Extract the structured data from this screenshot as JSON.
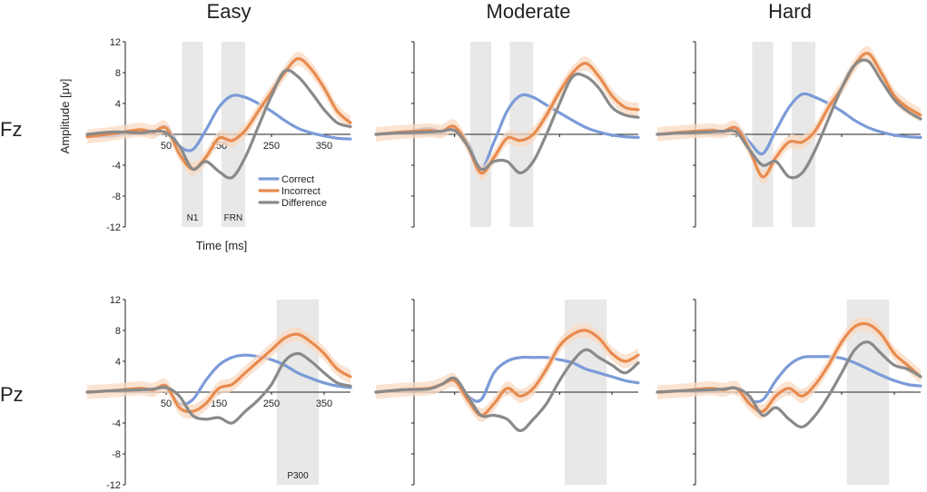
{
  "columns": [
    "Easy",
    "Moderate",
    "Hard"
  ],
  "rows": [
    "Fz",
    "Pz"
  ],
  "colors": {
    "correct": "#7b9bd8",
    "incorrect": "#e88b4f",
    "difference": "#8a8a8a",
    "band": "#f9d9c2",
    "window": "#e8e8e8"
  },
  "axis": {
    "ylabel": "Amplitude [μv]",
    "xlabel": "Time [ms]",
    "yticks": [
      "12",
      "8",
      "4",
      "-4",
      "-8",
      "-12"
    ],
    "xticks": [
      "50",
      "150",
      "250",
      "350"
    ]
  },
  "legend": [
    "Correct",
    "Incorrect",
    "Difference"
  ],
  "windows_labels": {
    "n1": "N1",
    "frn": "FRN",
    "p300": "P300"
  },
  "chart_data": [
    {
      "type": "line",
      "row": "Fz",
      "condition": "Easy",
      "xlim": [
        -100,
        400
      ],
      "ylim": [
        -12,
        12
      ],
      "windows": [
        {
          "name": "N1",
          "range": [
            80,
            120
          ]
        },
        {
          "name": "FRN",
          "range": [
            155,
            200
          ]
        }
      ],
      "x": [
        -100,
        -50,
        0,
        25,
        50,
        75,
        100,
        125,
        150,
        175,
        200,
        225,
        250,
        275,
        300,
        325,
        350,
        375,
        400
      ],
      "series": [
        {
          "name": "Correct",
          "values": [
            -0.3,
            -0.2,
            0.5,
            0.2,
            1.0,
            -1.5,
            -2.0,
            0.5,
            3.5,
            5.0,
            4.8,
            4.0,
            3.0,
            1.8,
            0.8,
            0.2,
            -0.2,
            -0.5,
            -0.6
          ]
        },
        {
          "name": "Incorrect",
          "values": [
            -0.3,
            0.1,
            0.6,
            0.3,
            0.8,
            -2.5,
            -4.5,
            -3.0,
            -0.5,
            -0.8,
            0.5,
            3.0,
            5.5,
            8.0,
            9.8,
            8.5,
            6.0,
            3.0,
            1.5
          ]
        },
        {
          "name": "Difference",
          "values": [
            0.0,
            0.3,
            0.2,
            0.4,
            0.2,
            -1.5,
            -4.5,
            -3.5,
            -4.8,
            -5.6,
            -3.0,
            1.0,
            5.0,
            8.2,
            7.5,
            5.5,
            3.2,
            1.5,
            1.0
          ]
        }
      ]
    },
    {
      "type": "line",
      "row": "Fz",
      "condition": "Moderate",
      "xlim": [
        -100,
        400
      ],
      "ylim": [
        -12,
        12
      ],
      "windows": [
        {
          "name": "N1",
          "range": [
            80,
            120
          ]
        },
        {
          "name": "FRN",
          "range": [
            155,
            200
          ]
        }
      ],
      "x": [
        -100,
        -50,
        0,
        25,
        50,
        75,
        100,
        125,
        150,
        175,
        200,
        225,
        250,
        275,
        300,
        325,
        350,
        375,
        400
      ],
      "series": [
        {
          "name": "Correct",
          "values": [
            0.0,
            0.2,
            0.8,
            0.3,
            0.8,
            -1.0,
            -4.5,
            -1.0,
            3.0,
            5.0,
            4.8,
            3.8,
            2.8,
            1.8,
            0.9,
            0.3,
            -0.1,
            -0.3,
            -0.4
          ]
        },
        {
          "name": "Incorrect",
          "values": [
            0.0,
            0.3,
            0.5,
            0.4,
            1.0,
            -1.5,
            -5.0,
            -3.0,
            -0.5,
            -0.8,
            0.0,
            2.5,
            5.5,
            8.0,
            9.2,
            7.5,
            5.0,
            3.5,
            3.2
          ]
        },
        {
          "name": "Difference",
          "values": [
            0.0,
            0.2,
            0.3,
            0.4,
            0.5,
            -1.5,
            -4.5,
            -3.5,
            -3.5,
            -5.0,
            -3.5,
            0.0,
            4.0,
            7.5,
            7.5,
            6.0,
            3.5,
            2.5,
            2.2
          ]
        }
      ]
    },
    {
      "type": "line",
      "row": "Fz",
      "condition": "Hard",
      "xlim": [
        -100,
        400
      ],
      "ylim": [
        -12,
        12
      ],
      "windows": [
        {
          "name": "N1",
          "range": [
            80,
            120
          ]
        },
        {
          "name": "FRN",
          "range": [
            155,
            200
          ]
        }
      ],
      "x": [
        -100,
        -50,
        0,
        25,
        50,
        75,
        100,
        125,
        150,
        175,
        200,
        225,
        250,
        275,
        300,
        325,
        350,
        375,
        400
      ],
      "series": [
        {
          "name": "Correct",
          "values": [
            0.0,
            0.2,
            0.6,
            0.3,
            0.9,
            -1.0,
            -2.5,
            0.5,
            3.5,
            5.2,
            4.8,
            4.0,
            3.0,
            1.8,
            0.9,
            0.3,
            -0.1,
            -0.3,
            -0.4
          ]
        },
        {
          "name": "Incorrect",
          "values": [
            0.0,
            0.3,
            0.5,
            0.4,
            0.8,
            -2.0,
            -5.5,
            -3.0,
            -1.0,
            -1.0,
            0.5,
            3.5,
            6.0,
            9.0,
            10.5,
            8.0,
            5.0,
            3.5,
            2.5
          ]
        },
        {
          "name": "Difference",
          "values": [
            0.0,
            0.2,
            0.3,
            0.4,
            0.3,
            -2.0,
            -4.0,
            -3.5,
            -5.5,
            -5.0,
            -2.0,
            2.0,
            6.0,
            9.0,
            9.5,
            7.0,
            4.5,
            3.0,
            2.0
          ]
        }
      ]
    },
    {
      "type": "line",
      "row": "Pz",
      "condition": "Easy",
      "xlim": [
        -100,
        400
      ],
      "ylim": [
        -12,
        12
      ],
      "windows": [
        {
          "name": "P300",
          "range": [
            260,
            340
          ]
        }
      ],
      "x": [
        -100,
        -50,
        0,
        25,
        50,
        75,
        100,
        125,
        150,
        175,
        200,
        225,
        250,
        275,
        300,
        325,
        350,
        375,
        400
      ],
      "series": [
        {
          "name": "Correct",
          "values": [
            0.0,
            0.2,
            0.5,
            0.3,
            0.5,
            -1.5,
            -1.0,
            1.5,
            3.5,
            4.5,
            4.8,
            4.6,
            4.2,
            3.5,
            2.5,
            1.8,
            1.2,
            0.8,
            0.6
          ]
        },
        {
          "name": "Incorrect",
          "values": [
            0.0,
            0.2,
            0.5,
            0.3,
            0.8,
            -2.0,
            -2.5,
            -1.5,
            0.5,
            1.0,
            2.5,
            4.0,
            5.5,
            7.0,
            7.5,
            6.5,
            5.0,
            3.0,
            2.0
          ]
        },
        {
          "name": "Difference",
          "values": [
            0.0,
            0.2,
            0.3,
            0.4,
            0.6,
            -0.5,
            -3.0,
            -3.5,
            -3.3,
            -4.0,
            -2.5,
            -1.0,
            1.0,
            4.0,
            5.0,
            4.0,
            2.5,
            1.2,
            0.8
          ]
        }
      ]
    },
    {
      "type": "line",
      "row": "Pz",
      "condition": "Moderate",
      "xlim": [
        -100,
        400
      ],
      "ylim": [
        -12,
        12
      ],
      "windows": [
        {
          "name": "P300",
          "range": [
            260,
            340
          ]
        }
      ],
      "x": [
        -100,
        -50,
        0,
        25,
        50,
        75,
        100,
        125,
        150,
        175,
        200,
        225,
        250,
        275,
        300,
        325,
        350,
        375,
        400
      ],
      "series": [
        {
          "name": "Correct",
          "values": [
            0.0,
            0.3,
            0.5,
            1.0,
            1.5,
            -0.5,
            -1.0,
            2.5,
            4.0,
            4.5,
            4.5,
            4.5,
            4.2,
            3.8,
            3.0,
            2.5,
            2.0,
            1.5,
            1.2
          ]
        },
        {
          "name": "Incorrect",
          "values": [
            0.0,
            0.3,
            0.5,
            1.0,
            1.5,
            -1.0,
            -3.0,
            -1.5,
            0.5,
            -0.5,
            0.5,
            3.0,
            6.0,
            7.5,
            8.0,
            7.0,
            5.0,
            4.0,
            4.8
          ]
        },
        {
          "name": "Difference",
          "values": [
            0.0,
            0.3,
            0.4,
            1.0,
            1.8,
            -0.5,
            -3.0,
            -3.0,
            -3.5,
            -5.0,
            -3.5,
            -1.5,
            1.5,
            4.0,
            5.5,
            4.5,
            3.5,
            2.5,
            3.8
          ]
        }
      ]
    },
    {
      "type": "line",
      "row": "Pz",
      "condition": "Hard",
      "xlim": [
        -100,
        400
      ],
      "ylim": [
        -12,
        12
      ],
      "windows": [
        {
          "name": "P300",
          "range": [
            260,
            340
          ]
        }
      ],
      "x": [
        -100,
        -50,
        0,
        25,
        50,
        75,
        100,
        125,
        150,
        175,
        200,
        225,
        250,
        275,
        300,
        325,
        350,
        375,
        400
      ],
      "series": [
        {
          "name": "Correct",
          "values": [
            0.0,
            0.2,
            0.5,
            0.3,
            0.5,
            -1.0,
            -1.0,
            1.5,
            3.5,
            4.5,
            4.6,
            4.6,
            4.4,
            3.8,
            3.0,
            2.2,
            1.5,
            1.0,
            0.8
          ]
        },
        {
          "name": "Incorrect",
          "values": [
            0.0,
            0.2,
            0.5,
            0.3,
            0.5,
            -1.5,
            -2.5,
            -0.5,
            0.5,
            -0.5,
            1.0,
            3.5,
            6.5,
            8.5,
            8.8,
            7.5,
            5.0,
            3.5,
            2.0
          ]
        },
        {
          "name": "Difference",
          "values": [
            0.0,
            0.2,
            0.3,
            0.4,
            0.5,
            -0.5,
            -3.0,
            -2.0,
            -3.5,
            -4.5,
            -3.0,
            -0.5,
            2.5,
            5.5,
            6.5,
            5.0,
            3.5,
            3.0,
            2.0
          ]
        }
      ]
    }
  ]
}
